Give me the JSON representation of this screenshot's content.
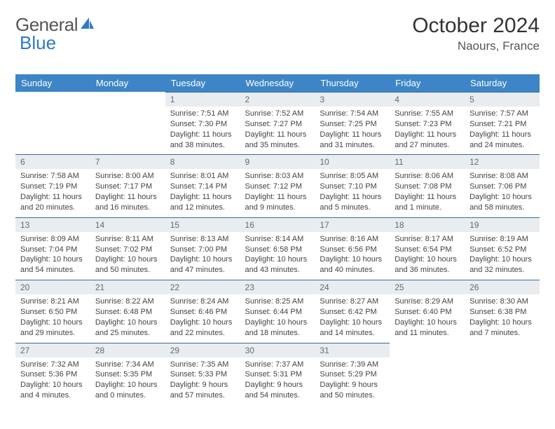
{
  "brand": {
    "part1": "General",
    "part2": "Blue"
  },
  "title": "October 2024",
  "location": "Naours, France",
  "colors": {
    "header_bg": "#3d85c6",
    "header_text": "#ffffff",
    "daynum_bg": "#e9edf0",
    "daynum_text": "#5f6b76",
    "daynum_border": "#3d6a9a",
    "body_text": "#444444",
    "brand_accent": "#2f79c2"
  },
  "weekdays": [
    "Sunday",
    "Monday",
    "Tuesday",
    "Wednesday",
    "Thursday",
    "Friday",
    "Saturday"
  ],
  "weeks": [
    [
      null,
      null,
      {
        "n": "1",
        "sr": "7:51 AM",
        "ss": "7:30 PM",
        "dl": "11 hours and 38 minutes."
      },
      {
        "n": "2",
        "sr": "7:52 AM",
        "ss": "7:27 PM",
        "dl": "11 hours and 35 minutes."
      },
      {
        "n": "3",
        "sr": "7:54 AM",
        "ss": "7:25 PM",
        "dl": "11 hours and 31 minutes."
      },
      {
        "n": "4",
        "sr": "7:55 AM",
        "ss": "7:23 PM",
        "dl": "11 hours and 27 minutes."
      },
      {
        "n": "5",
        "sr": "7:57 AM",
        "ss": "7:21 PM",
        "dl": "11 hours and 24 minutes."
      }
    ],
    [
      {
        "n": "6",
        "sr": "7:58 AM",
        "ss": "7:19 PM",
        "dl": "11 hours and 20 minutes."
      },
      {
        "n": "7",
        "sr": "8:00 AM",
        "ss": "7:17 PM",
        "dl": "11 hours and 16 minutes."
      },
      {
        "n": "8",
        "sr": "8:01 AM",
        "ss": "7:14 PM",
        "dl": "11 hours and 12 minutes."
      },
      {
        "n": "9",
        "sr": "8:03 AM",
        "ss": "7:12 PM",
        "dl": "11 hours and 9 minutes."
      },
      {
        "n": "10",
        "sr": "8:05 AM",
        "ss": "7:10 PM",
        "dl": "11 hours and 5 minutes."
      },
      {
        "n": "11",
        "sr": "8:06 AM",
        "ss": "7:08 PM",
        "dl": "11 hours and 1 minute."
      },
      {
        "n": "12",
        "sr": "8:08 AM",
        "ss": "7:06 PM",
        "dl": "10 hours and 58 minutes."
      }
    ],
    [
      {
        "n": "13",
        "sr": "8:09 AM",
        "ss": "7:04 PM",
        "dl": "10 hours and 54 minutes."
      },
      {
        "n": "14",
        "sr": "8:11 AM",
        "ss": "7:02 PM",
        "dl": "10 hours and 50 minutes."
      },
      {
        "n": "15",
        "sr": "8:13 AM",
        "ss": "7:00 PM",
        "dl": "10 hours and 47 minutes."
      },
      {
        "n": "16",
        "sr": "8:14 AM",
        "ss": "6:58 PM",
        "dl": "10 hours and 43 minutes."
      },
      {
        "n": "17",
        "sr": "8:16 AM",
        "ss": "6:56 PM",
        "dl": "10 hours and 40 minutes."
      },
      {
        "n": "18",
        "sr": "8:17 AM",
        "ss": "6:54 PM",
        "dl": "10 hours and 36 minutes."
      },
      {
        "n": "19",
        "sr": "8:19 AM",
        "ss": "6:52 PM",
        "dl": "10 hours and 32 minutes."
      }
    ],
    [
      {
        "n": "20",
        "sr": "8:21 AM",
        "ss": "6:50 PM",
        "dl": "10 hours and 29 minutes."
      },
      {
        "n": "21",
        "sr": "8:22 AM",
        "ss": "6:48 PM",
        "dl": "10 hours and 25 minutes."
      },
      {
        "n": "22",
        "sr": "8:24 AM",
        "ss": "6:46 PM",
        "dl": "10 hours and 22 minutes."
      },
      {
        "n": "23",
        "sr": "8:25 AM",
        "ss": "6:44 PM",
        "dl": "10 hours and 18 minutes."
      },
      {
        "n": "24",
        "sr": "8:27 AM",
        "ss": "6:42 PM",
        "dl": "10 hours and 14 minutes."
      },
      {
        "n": "25",
        "sr": "8:29 AM",
        "ss": "6:40 PM",
        "dl": "10 hours and 11 minutes."
      },
      {
        "n": "26",
        "sr": "8:30 AM",
        "ss": "6:38 PM",
        "dl": "10 hours and 7 minutes."
      }
    ],
    [
      {
        "n": "27",
        "sr": "7:32 AM",
        "ss": "5:36 PM",
        "dl": "10 hours and 4 minutes."
      },
      {
        "n": "28",
        "sr": "7:34 AM",
        "ss": "5:35 PM",
        "dl": "10 hours and 0 minutes."
      },
      {
        "n": "29",
        "sr": "7:35 AM",
        "ss": "5:33 PM",
        "dl": "9 hours and 57 minutes."
      },
      {
        "n": "30",
        "sr": "7:37 AM",
        "ss": "5:31 PM",
        "dl": "9 hours and 54 minutes."
      },
      {
        "n": "31",
        "sr": "7:39 AM",
        "ss": "5:29 PM",
        "dl": "9 hours and 50 minutes."
      },
      null,
      null
    ]
  ],
  "labels": {
    "sunrise": "Sunrise:",
    "sunset": "Sunset:",
    "daylight": "Daylight:"
  }
}
